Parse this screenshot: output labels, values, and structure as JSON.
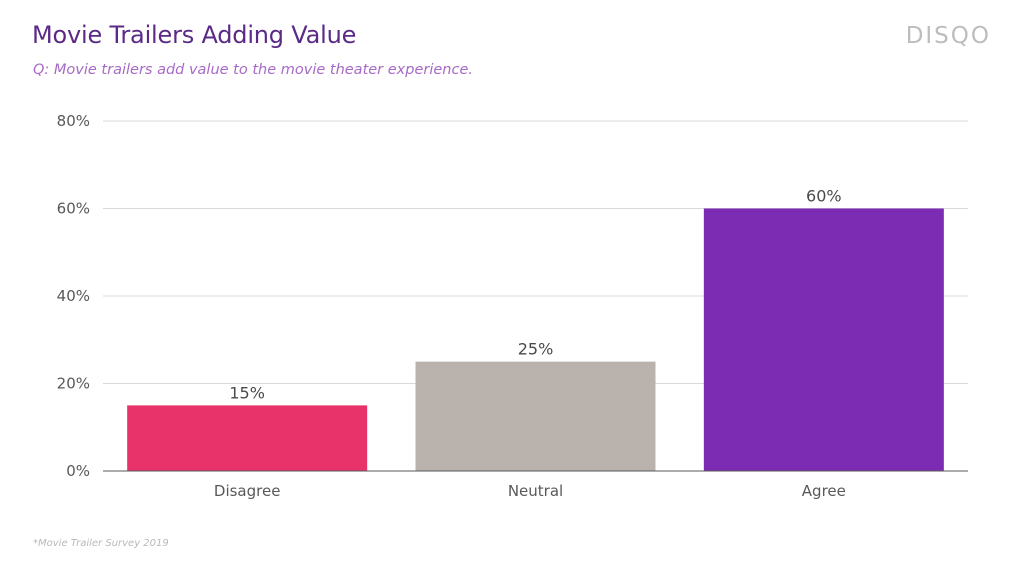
{
  "header": {
    "title": "Movie Trailers Adding Value",
    "subtitle": "Q: Movie trailers add value to the movie theater experience.",
    "logo": "DISQO"
  },
  "footnote": "*Movie Trailer Survey 2019",
  "colors": {
    "title": "#5b2a86",
    "subtitle": "#a86ac7",
    "bars": [
      "#e8336a",
      "#bab3ad",
      "#7b2cb3"
    ],
    "gridline": "#d9d9d9",
    "axis_text": "#595959"
  },
  "chart_data": {
    "type": "bar",
    "categories": [
      "Disagree",
      "Neutral",
      "Agree"
    ],
    "values": [
      15,
      25,
      60
    ],
    "data_labels": [
      "15%",
      "25%",
      "60%"
    ],
    "ylim": [
      0,
      80
    ],
    "yticks": [
      0,
      20,
      40,
      60,
      80
    ],
    "ytick_labels": [
      "0%",
      "20%",
      "40%",
      "60%",
      "80%"
    ],
    "grid": true,
    "legend": "none"
  }
}
